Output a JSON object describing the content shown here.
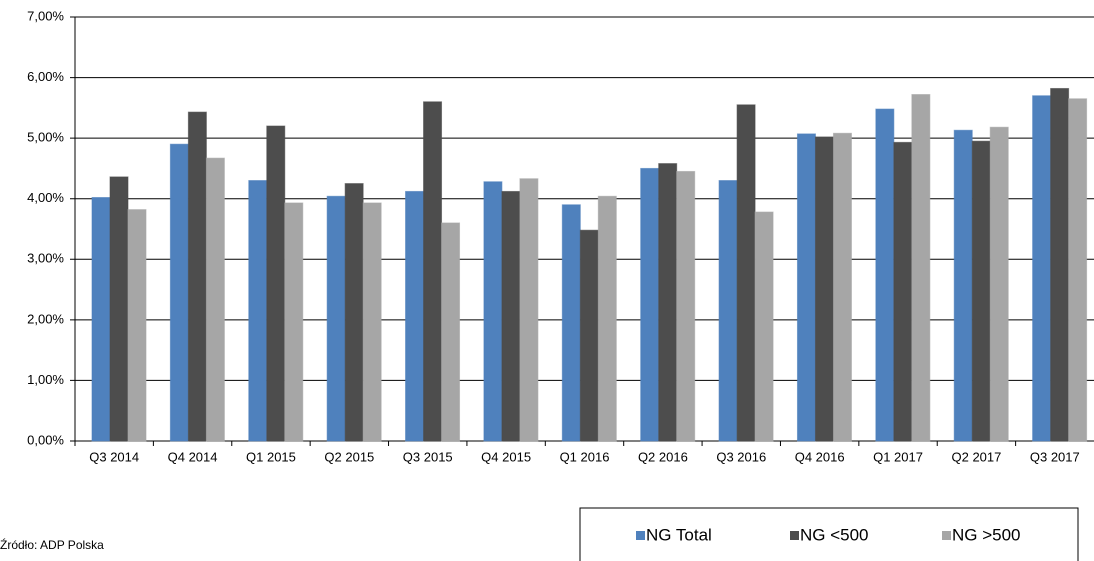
{
  "chart_data": {
    "type": "bar",
    "categories": [
      "Q3 2014",
      "Q4 2014",
      "Q1 2015",
      "Q2 2015",
      "Q3 2015",
      "Q4 2015",
      "Q1 2016",
      "Q2 2016",
      "Q3 2016",
      "Q4 2016",
      "Q1 2017",
      "Q2 2017",
      "Q3 2017"
    ],
    "series": [
      {
        "name": "NG Total",
        "color": "#4f81bd",
        "values": [
          4.02,
          4.9,
          4.3,
          4.04,
          4.12,
          4.28,
          3.9,
          4.5,
          4.3,
          5.07,
          5.48,
          5.13,
          5.7
        ]
      },
      {
        "name": "NG <500",
        "color": "#4d4d4d",
        "values": [
          4.36,
          5.43,
          5.2,
          4.25,
          5.6,
          4.12,
          3.48,
          4.58,
          5.55,
          5.02,
          4.93,
          4.95,
          5.82
        ]
      },
      {
        "name": "NG >500",
        "color": "#a6a6a6",
        "values": [
          3.82,
          4.67,
          3.93,
          3.93,
          3.6,
          4.33,
          4.04,
          4.45,
          3.78,
          5.08,
          5.72,
          5.18,
          5.65
        ]
      }
    ],
    "ylim": [
      0,
      7
    ],
    "yticks": [
      {
        "value": 0,
        "label": "0,00%"
      },
      {
        "value": 1,
        "label": "1,00%"
      },
      {
        "value": 2,
        "label": "2,00%"
      },
      {
        "value": 3,
        "label": "3,00%"
      },
      {
        "value": 4,
        "label": "4,00%"
      },
      {
        "value": 5,
        "label": "5,00%"
      },
      {
        "value": 6,
        "label": "6,00%"
      },
      {
        "value": 7,
        "label": "7,00%"
      }
    ],
    "grid": true,
    "legend": "bottom-right",
    "source": "Źródło: ADP Polska"
  }
}
